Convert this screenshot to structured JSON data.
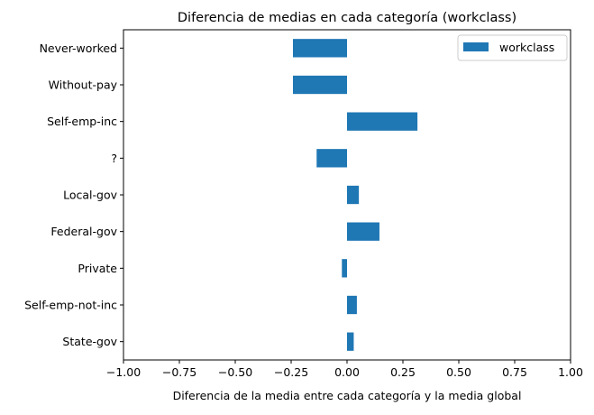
{
  "chart_data": {
    "type": "bar",
    "orientation": "horizontal",
    "title": "Diferencia de medias en cada categoría (workclass)",
    "xlabel": "Diferencia de la media entre cada categoría y la media global",
    "ylabel": "",
    "xlim": [
      -1.0,
      1.0
    ],
    "xticks": [
      -1.0,
      -0.75,
      -0.5,
      -0.25,
      0.0,
      0.25,
      0.5,
      0.75,
      1.0
    ],
    "xtick_labels": [
      "−1.00",
      "−0.75",
      "−0.50",
      "−0.25",
      "0.00",
      "0.25",
      "0.50",
      "0.75",
      "1.00"
    ],
    "categories": [
      "Never-worked",
      "Without-pay",
      "Self-emp-inc",
      "?",
      "Local-gov",
      "Federal-gov",
      "Private",
      "Self-emp-not-inc",
      "State-gov"
    ],
    "series": [
      {
        "name": "workclass",
        "color": "#1f77b4",
        "values": [
          -0.242,
          -0.242,
          0.315,
          -0.136,
          0.053,
          0.145,
          -0.023,
          0.044,
          0.03
        ]
      }
    ],
    "grid": false,
    "legend": "top-right"
  }
}
